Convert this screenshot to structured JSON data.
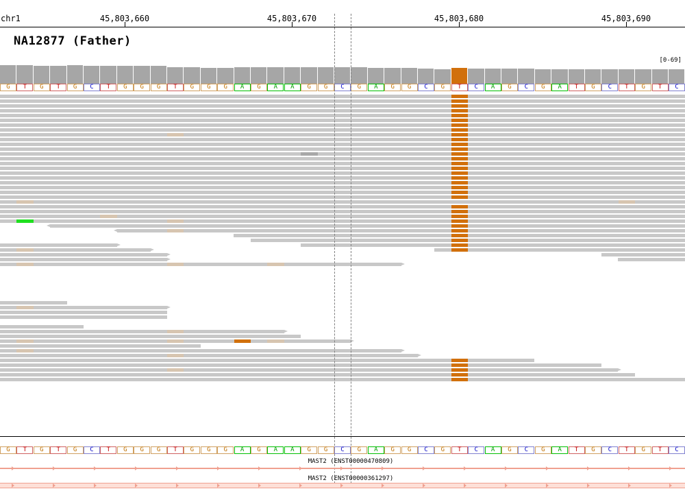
{
  "ruler": {
    "chrom": "chr1",
    "ticks": [
      "45,803,660",
      "45,803,670",
      "45,803,680",
      "45,803,690"
    ]
  },
  "sample": {
    "title": "NA12877 (Father)",
    "coverage_range": "[0-69]"
  },
  "reference_sequence": [
    "G",
    "T",
    "G",
    "T",
    "G",
    "C",
    "T",
    "G",
    "G",
    "G",
    "T",
    "G",
    "G",
    "G",
    "A",
    "G",
    "A",
    "A",
    "G",
    "G",
    "C",
    "G",
    "A",
    "G",
    "G",
    "C",
    "G",
    "T",
    "C",
    "A",
    "G",
    "C",
    "G",
    "A",
    "T",
    "G",
    "C",
    "T",
    "G",
    "T",
    "C"
  ],
  "coverage": {
    "snv_position_index": 27,
    "snv_color": "#d1700c",
    "bar_color": "#a6a6a6"
  },
  "read_colors": {
    "read": "#c8c8c8",
    "mismatch_orange": "#d1700c",
    "mismatch_green": "#20e020",
    "mismatch_faint": "#d7c5b0",
    "mismatch_gray": "#a8a8a8"
  },
  "genes": {
    "transcript1": "MAST2 (ENST00000470809)",
    "transcript2": "MAST2 (ENST00000361297)",
    "color": "#f0a090"
  }
}
